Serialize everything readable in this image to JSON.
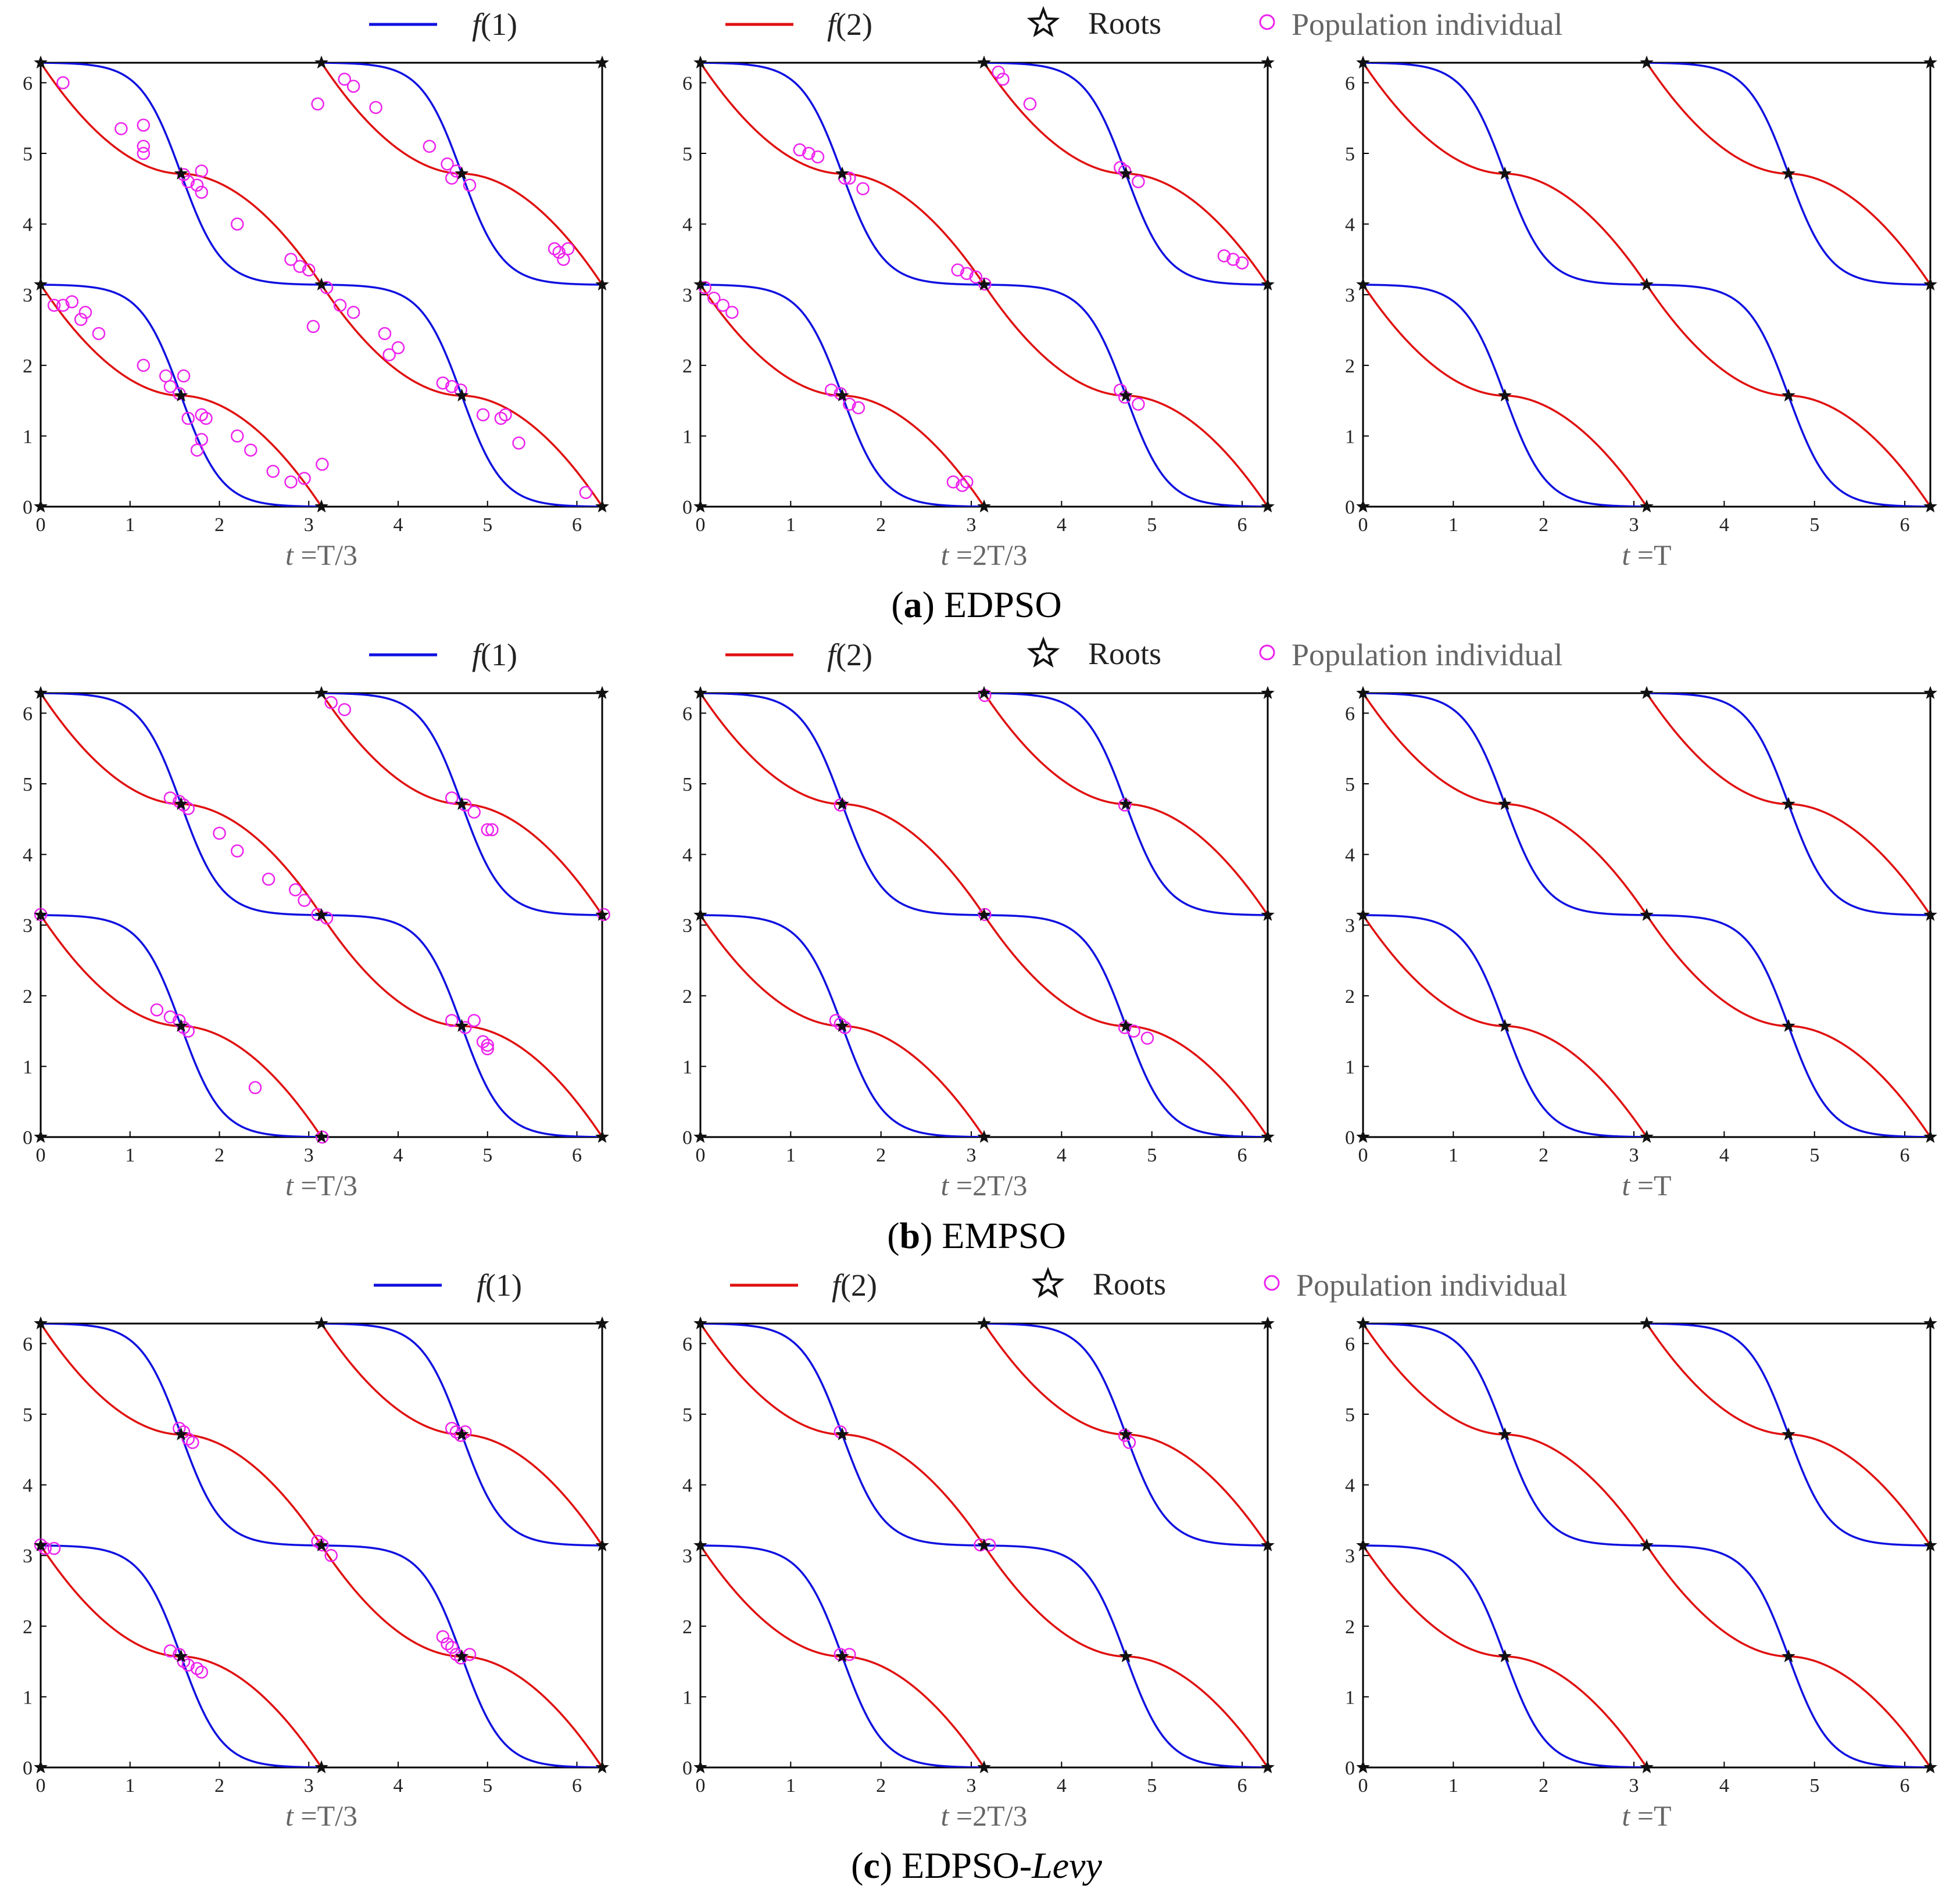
{
  "legend": {
    "f1": "f(1)",
    "f2": "f(2)",
    "roots": "Roots",
    "population": "Population individual"
  },
  "time_labels": [
    "t =T/3",
    "t =2T/3",
    "t =T"
  ],
  "colors": {
    "f1": "#1010e0",
    "f2": "#e01010",
    "roots": "#111111",
    "population": "#ee22ee"
  },
  "chart_data": [
    {
      "type": "scatter",
      "panel_label": "(a)",
      "method": "EDPSO",
      "title": "(a) EDPSO",
      "xlim": [
        0,
        6.283
      ],
      "ylim": [
        0,
        6.283
      ],
      "xticks": [
        0,
        1,
        2,
        3,
        4,
        5,
        6
      ],
      "yticks": [
        0,
        1,
        2,
        3,
        4,
        5,
        6
      ],
      "series": [
        {
          "name": "f(1)",
          "curve": "blue",
          "description": "tangent-shaped descending branches"
        },
        {
          "name": "f(2)",
          "curve": "red",
          "description": "inverse descending branches"
        },
        {
          "name": "Roots",
          "marker": "star",
          "points": [
            [
              0,
              0
            ],
            [
              3.1416,
              0
            ],
            [
              6.2832,
              0
            ],
            [
              0,
              3.1416
            ],
            [
              3.1416,
              3.1416
            ],
            [
              6.2832,
              3.1416
            ],
            [
              0,
              6.2832
            ],
            [
              3.1416,
              6.2832
            ],
            [
              6.2832,
              6.2832
            ],
            [
              1.5708,
              1.5708
            ],
            [
              4.7124,
              1.5708
            ],
            [
              1.5708,
              4.7124
            ],
            [
              4.7124,
              4.7124
            ]
          ]
        }
      ],
      "time_panels": [
        {
          "time": "t =T/3",
          "population": [
            [
              0.25,
              6.0
            ],
            [
              0.9,
              5.35
            ],
            [
              1.15,
              5.1
            ],
            [
              1.15,
              5.0
            ],
            [
              1.15,
              5.4
            ],
            [
              1.6,
              4.7
            ],
            [
              1.65,
              4.6
            ],
            [
              1.75,
              4.55
            ],
            [
              1.8,
              4.45
            ],
            [
              1.8,
              4.75
            ],
            [
              2.2,
              4.0
            ],
            [
              3.1,
              5.7
            ],
            [
              3.4,
              6.05
            ],
            [
              3.5,
              5.95
            ],
            [
              3.75,
              5.65
            ],
            [
              4.35,
              5.1
            ],
            [
              4.55,
              4.85
            ],
            [
              4.6,
              4.65
            ],
            [
              4.65,
              4.75
            ],
            [
              4.8,
              4.55
            ],
            [
              5.75,
              3.65
            ],
            [
              5.8,
              3.6
            ],
            [
              5.85,
              3.5
            ],
            [
              5.9,
              3.65
            ],
            [
              2.8,
              3.5
            ],
            [
              2.9,
              3.4
            ],
            [
              3.0,
              3.35
            ],
            [
              3.2,
              3.1
            ],
            [
              3.35,
              2.85
            ],
            [
              3.5,
              2.75
            ],
            [
              3.85,
              2.45
            ],
            [
              3.9,
              2.15
            ],
            [
              4.0,
              2.25
            ],
            [
              3.05,
              2.55
            ],
            [
              0.15,
              2.85
            ],
            [
              0.25,
              2.85
            ],
            [
              0.35,
              2.9
            ],
            [
              0.45,
              2.65
            ],
            [
              0.5,
              2.75
            ],
            [
              0.65,
              2.45
            ],
            [
              1.15,
              2.0
            ],
            [
              1.4,
              1.85
            ],
            [
              1.45,
              1.7
            ],
            [
              1.55,
              1.6
            ],
            [
              1.6,
              1.85
            ],
            [
              1.65,
              1.25
            ],
            [
              1.8,
              1.3
            ],
            [
              1.85,
              1.25
            ],
            [
              1.75,
              0.8
            ],
            [
              1.8,
              0.95
            ],
            [
              2.2,
              1.0
            ],
            [
              2.35,
              0.8
            ],
            [
              2.6,
              0.5
            ],
            [
              2.8,
              0.35
            ],
            [
              2.95,
              0.4
            ],
            [
              3.15,
              0.6
            ],
            [
              4.5,
              1.75
            ],
            [
              4.6,
              1.7
            ],
            [
              4.7,
              1.65
            ],
            [
              4.95,
              1.3
            ],
            [
              5.15,
              1.25
            ],
            [
              5.2,
              1.3
            ],
            [
              5.35,
              0.9
            ],
            [
              6.1,
              0.2
            ]
          ]
        },
        {
          "time": "t =2T/3",
          "population": [
            [
              1.1,
              5.05
            ],
            [
              1.2,
              5.0
            ],
            [
              1.3,
              4.95
            ],
            [
              1.6,
              4.65
            ],
            [
              1.65,
              4.65
            ],
            [
              1.8,
              4.5
            ],
            [
              3.3,
              6.15
            ],
            [
              3.35,
              6.05
            ],
            [
              3.65,
              5.7
            ],
            [
              4.65,
              4.8
            ],
            [
              4.7,
              4.75
            ],
            [
              4.85,
              4.6
            ],
            [
              5.8,
              3.55
            ],
            [
              5.9,
              3.5
            ],
            [
              6.0,
              3.45
            ],
            [
              2.85,
              3.35
            ],
            [
              2.95,
              3.3
            ],
            [
              3.05,
              3.25
            ],
            [
              3.15,
              3.15
            ],
            [
              0.05,
              3.1
            ],
            [
              0.15,
              2.95
            ],
            [
              0.25,
              2.85
            ],
            [
              0.35,
              2.75
            ],
            [
              1.45,
              1.65
            ],
            [
              1.55,
              1.6
            ],
            [
              1.65,
              1.45
            ],
            [
              1.75,
              1.4
            ],
            [
              2.8,
              0.35
            ],
            [
              2.9,
              0.3
            ],
            [
              2.95,
              0.35
            ],
            [
              4.65,
              1.65
            ],
            [
              4.7,
              1.55
            ],
            [
              4.85,
              1.45
            ]
          ]
        },
        {
          "time": "t =T",
          "population": []
        }
      ]
    },
    {
      "type": "scatter",
      "panel_label": "(b)",
      "method": "EMPSO",
      "title": "(b) EMPSO",
      "xlim": [
        0,
        6.283
      ],
      "ylim": [
        0,
        6.283
      ],
      "xticks": [
        0,
        1,
        2,
        3,
        4,
        5,
        6
      ],
      "yticks": [
        0,
        1,
        2,
        3,
        4,
        5,
        6
      ],
      "time_panels": [
        {
          "time": "t =T/3",
          "population": [
            [
              1.45,
              4.8
            ],
            [
              1.55,
              4.75
            ],
            [
              1.6,
              4.7
            ],
            [
              1.65,
              4.65
            ],
            [
              2.0,
              4.3
            ],
            [
              2.2,
              4.05
            ],
            [
              2.55,
              3.65
            ],
            [
              2.85,
              3.5
            ],
            [
              2.95,
              3.35
            ],
            [
              3.1,
              3.15
            ],
            [
              3.2,
              3.1
            ],
            [
              3.25,
              6.15
            ],
            [
              3.4,
              6.05
            ],
            [
              4.6,
              4.8
            ],
            [
              4.75,
              4.7
            ],
            [
              4.85,
              4.6
            ],
            [
              5.0,
              4.35
            ],
            [
              5.05,
              4.35
            ],
            [
              6.3,
              3.15
            ],
            [
              1.3,
              1.8
            ],
            [
              1.45,
              1.7
            ],
            [
              1.55,
              1.65
            ],
            [
              1.6,
              1.55
            ],
            [
              1.65,
              1.5
            ],
            [
              2.4,
              0.7
            ],
            [
              3.15,
              0.0
            ],
            [
              4.6,
              1.65
            ],
            [
              4.75,
              1.55
            ],
            [
              4.85,
              1.65
            ],
            [
              4.95,
              1.35
            ],
            [
              5.0,
              1.25
            ],
            [
              5.0,
              1.3
            ],
            [
              0.0,
              3.15
            ]
          ]
        },
        {
          "time": "t =2T/3",
          "population": [
            [
              1.55,
              4.7
            ],
            [
              3.15,
              6.25
            ],
            [
              3.15,
              3.15
            ],
            [
              4.7,
              4.7
            ],
            [
              1.5,
              1.65
            ],
            [
              1.55,
              1.6
            ],
            [
              1.6,
              1.55
            ],
            [
              4.7,
              1.55
            ],
            [
              4.8,
              1.5
            ],
            [
              4.95,
              1.4
            ]
          ]
        },
        {
          "time": "t =T",
          "population": []
        }
      ]
    },
    {
      "type": "scatter",
      "panel_label": "(c)",
      "method": "EDPSO-Levy",
      "title": "(c) EDPSO-Levy",
      "xlim": [
        0,
        6.283
      ],
      "ylim": [
        0,
        6.283
      ],
      "xticks": [
        0,
        1,
        2,
        3,
        4,
        5,
        6
      ],
      "yticks": [
        0,
        1,
        2,
        3,
        4,
        5,
        6
      ],
      "time_panels": [
        {
          "time": "t =T/3",
          "population": [
            [
              1.55,
              4.8
            ],
            [
              1.6,
              4.75
            ],
            [
              1.65,
              4.65
            ],
            [
              1.7,
              4.6
            ],
            [
              4.6,
              4.8
            ],
            [
              4.65,
              4.75
            ],
            [
              4.7,
              4.7
            ],
            [
              4.75,
              4.75
            ],
            [
              0.0,
              3.15
            ],
            [
              0.05,
              3.1
            ],
            [
              0.15,
              3.1
            ],
            [
              3.1,
              3.2
            ],
            [
              3.15,
              3.15
            ],
            [
              3.25,
              3.0
            ],
            [
              1.45,
              1.65
            ],
            [
              1.55,
              1.6
            ],
            [
              1.6,
              1.5
            ],
            [
              1.65,
              1.45
            ],
            [
              1.75,
              1.4
            ],
            [
              1.8,
              1.35
            ],
            [
              4.5,
              1.85
            ],
            [
              4.55,
              1.75
            ],
            [
              4.6,
              1.7
            ],
            [
              4.65,
              1.6
            ],
            [
              4.7,
              1.55
            ],
            [
              4.8,
              1.6
            ]
          ]
        },
        {
          "time": "t =2T/3",
          "population": [
            [
              1.55,
              4.75
            ],
            [
              3.1,
              3.15
            ],
            [
              3.2,
              3.15
            ],
            [
              4.7,
              4.7
            ],
            [
              4.75,
              4.6
            ],
            [
              1.55,
              1.6
            ],
            [
              1.65,
              1.6
            ]
          ]
        },
        {
          "time": "t =T",
          "population": []
        }
      ]
    }
  ]
}
